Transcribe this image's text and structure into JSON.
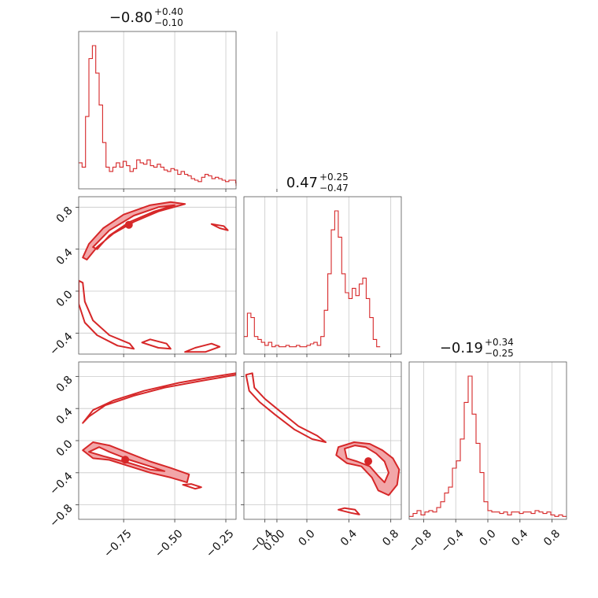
{
  "figure": {
    "color": "#d62728",
    "fill_color": "#f2a6a8"
  },
  "chart_data": {
    "type": "corner",
    "parameters": [
      {
        "title": {
          "median": "−0.80",
          "plus": "+0.40",
          "minus": "−0.10"
        },
        "range": [
          -0.97,
          -0.2
        ],
        "ticks": [
          -0.75,
          -0.5,
          -0.25,
          0.0
        ],
        "tick_labels": [
          "−0.75",
          "−0.50",
          "−0.25",
          "0.00"
        ],
        "histogram": {
          "start": -0.97,
          "bin_width": 0.0167,
          "counts": [
            0.18,
            0.15,
            0.5,
            0.9,
            0.99,
            0.8,
            0.58,
            0.32,
            0.15,
            0.12,
            0.15,
            0.18,
            0.15,
            0.19,
            0.16,
            0.12,
            0.14,
            0.2,
            0.18,
            0.17,
            0.2,
            0.16,
            0.15,
            0.17,
            0.15,
            0.13,
            0.12,
            0.14,
            0.13,
            0.1,
            0.12,
            0.1,
            0.09,
            0.07,
            0.06,
            0.05,
            0.08,
            0.1,
            0.09,
            0.07,
            0.08,
            0.07,
            0.06,
            0.05,
            0.06,
            0.06,
            0.04,
            0.03,
            0.04,
            0.04,
            0.05,
            0.04,
            0.03,
            0.04,
            0.03,
            0.04,
            0.05,
            0.03,
            0.02
          ]
        }
      },
      {
        "title": {
          "median": "0.47",
          "plus": "+0.25",
          "minus": "−0.47"
        },
        "range": [
          -0.6,
          0.9
        ],
        "ticks": [
          -0.4,
          0.0,
          0.4,
          0.8
        ],
        "tick_labels": [
          "−0.4",
          "0.0",
          "0.4",
          "0.8"
        ],
        "histogram": {
          "start": -0.6,
          "bin_width": 0.0333,
          "counts": [
            0.12,
            0.28,
            0.25,
            0.12,
            0.1,
            0.08,
            0.06,
            0.08,
            0.05,
            0.06,
            0.05,
            0.05,
            0.06,
            0.05,
            0.05,
            0.06,
            0.05,
            0.05,
            0.06,
            0.07,
            0.08,
            0.06,
            0.12,
            0.3,
            0.55,
            0.85,
            0.98,
            0.8,
            0.55,
            0.42,
            0.38,
            0.45,
            0.4,
            0.48,
            0.52,
            0.38,
            0.25,
            0.1,
            0.05
          ]
        }
      },
      {
        "title": {
          "median": "−0.19",
          "plus": "+0.34",
          "minus": "−0.25"
        },
        "range": [
          -0.98,
          0.98
        ],
        "ticks": [
          -0.8,
          -0.4,
          0.0,
          0.4,
          0.8
        ],
        "tick_labels": [
          "−0.8",
          "−0.4",
          "0.0",
          "0.4",
          "0.8"
        ],
        "histogram": {
          "start": -0.98,
          "bin_width": 0.049,
          "counts": [
            0.02,
            0.04,
            0.06,
            0.03,
            0.05,
            0.06,
            0.05,
            0.08,
            0.12,
            0.18,
            0.22,
            0.35,
            0.4,
            0.55,
            0.8,
            0.98,
            0.72,
            0.52,
            0.32,
            0.12,
            0.06,
            0.05,
            0.05,
            0.04,
            0.05,
            0.03,
            0.05,
            0.05,
            0.04,
            0.05,
            0.05,
            0.04,
            0.06,
            0.05,
            0.04,
            0.05,
            0.03,
            0.02,
            0.03,
            0.02
          ]
        }
      }
    ],
    "pairs": [
      {
        "x_param": 0,
        "y_param": 1,
        "y_ticks": [
          -0.4,
          0.0,
          0.4,
          0.8
        ],
        "y_tick_labels": [
          "−0.4",
          "0.0",
          "0.4",
          "0.8"
        ],
        "bands": [
          {
            "fill": true,
            "outer": [
              [
                -0.95,
                0.32
              ],
              [
                -0.92,
                0.45
              ],
              [
                -0.85,
                0.6
              ],
              [
                -0.75,
                0.73
              ],
              [
                -0.62,
                0.82
              ],
              [
                -0.52,
                0.85
              ],
              [
                -0.45,
                0.83
              ],
              [
                -0.58,
                0.76
              ],
              [
                -0.7,
                0.66
              ],
              [
                -0.8,
                0.55
              ],
              [
                -0.88,
                0.42
              ],
              [
                -0.93,
                0.3
              ]
            ],
            "inner": [
              [
                -0.9,
                0.42
              ],
              [
                -0.82,
                0.58
              ],
              [
                -0.7,
                0.72
              ],
              [
                -0.58,
                0.8
              ],
              [
                -0.5,
                0.82
              ],
              [
                -0.6,
                0.76
              ],
              [
                -0.72,
                0.66
              ],
              [
                -0.82,
                0.53
              ],
              [
                -0.88,
                0.4
              ]
            ]
          },
          {
            "fill": false,
            "outer": [
              [
                -0.97,
                0.1
              ],
              [
                -0.97,
                -0.12
              ],
              [
                -0.94,
                -0.3
              ],
              [
                -0.88,
                -0.42
              ],
              [
                -0.78,
                -0.52
              ],
              [
                -0.7,
                -0.55
              ],
              [
                -0.72,
                -0.5
              ],
              [
                -0.82,
                -0.42
              ],
              [
                -0.9,
                -0.28
              ],
              [
                -0.94,
                -0.1
              ],
              [
                -0.95,
                0.08
              ]
            ]
          },
          {
            "fill": false,
            "outer": [
              [
                -0.66,
                -0.49
              ],
              [
                -0.58,
                -0.54
              ],
              [
                -0.52,
                -0.55
              ],
              [
                -0.54,
                -0.5
              ],
              [
                -0.62,
                -0.46
              ]
            ]
          },
          {
            "fill": false,
            "outer": [
              [
                -0.45,
                -0.58
              ],
              [
                -0.35,
                -0.58
              ],
              [
                -0.28,
                -0.53
              ],
              [
                -0.32,
                -0.5
              ],
              [
                -0.4,
                -0.54
              ]
            ]
          },
          {
            "fill": false,
            "outer": [
              [
                -0.32,
                0.64
              ],
              [
                -0.26,
                0.62
              ],
              [
                -0.24,
                0.58
              ],
              [
                -0.28,
                0.6
              ]
            ]
          }
        ]
      },
      {
        "x_param": 0,
        "y_param": 2,
        "y_ticks": [
          -0.8,
          -0.4,
          0.0,
          0.4,
          0.8
        ],
        "y_tick_labels": [
          "−0.8",
          "−0.4",
          "0.0",
          "0.4",
          "0.8"
        ],
        "bands": [
          {
            "fill": true,
            "outer": [
              [
                -0.95,
                -0.12
              ],
              [
                -0.9,
                -0.02
              ],
              [
                -0.82,
                -0.06
              ],
              [
                -0.72,
                -0.16
              ],
              [
                -0.62,
                -0.26
              ],
              [
                -0.52,
                -0.34
              ],
              [
                -0.43,
                -0.42
              ],
              [
                -0.44,
                -0.52
              ],
              [
                -0.52,
                -0.46
              ],
              [
                -0.62,
                -0.4
              ],
              [
                -0.72,
                -0.32
              ],
              [
                -0.82,
                -0.24
              ],
              [
                -0.9,
                -0.22
              ]
            ],
            "inner": [
              [
                -0.92,
                -0.14
              ],
              [
                -0.87,
                -0.08
              ],
              [
                -0.82,
                -0.14
              ],
              [
                -0.72,
                -0.24
              ],
              [
                -0.62,
                -0.32
              ],
              [
                -0.55,
                -0.38
              ],
              [
                -0.62,
                -0.36
              ],
              [
                -0.72,
                -0.28
              ],
              [
                -0.84,
                -0.2
              ]
            ]
          },
          {
            "fill": false,
            "outer": [
              [
                -0.95,
                0.22
              ],
              [
                -0.9,
                0.38
              ],
              [
                -0.8,
                0.5
              ],
              [
                -0.65,
                0.62
              ],
              [
                -0.48,
                0.72
              ],
              [
                -0.3,
                0.8
              ],
              [
                -0.15,
                0.86
              ],
              [
                -0.05,
                0.94
              ],
              [
                0.02,
                0.96
              ],
              [
                -0.08,
                0.88
              ],
              [
                -0.2,
                0.82
              ],
              [
                -0.38,
                0.74
              ],
              [
                -0.55,
                0.66
              ],
              [
                -0.7,
                0.56
              ],
              [
                -0.84,
                0.44
              ],
              [
                -0.92,
                0.3
              ]
            ]
          },
          {
            "fill": false,
            "outer": [
              [
                -0.18,
                -0.72
              ],
              [
                -0.1,
                -0.78
              ],
              [
                0.05,
                -0.86
              ],
              [
                0.14,
                -0.9
              ],
              [
                0.15,
                -0.86
              ],
              [
                0.05,
                -0.82
              ],
              [
                -0.08,
                -0.75
              ]
            ]
          },
          {
            "fill": false,
            "outer": [
              [
                -0.46,
                -0.55
              ],
              [
                -0.4,
                -0.6
              ],
              [
                -0.37,
                -0.58
              ],
              [
                -0.42,
                -0.54
              ]
            ]
          }
        ]
      },
      {
        "x_param": 1,
        "y_param": 2,
        "y_ticks": [
          -0.8,
          -0.4,
          0.0,
          0.4,
          0.8
        ],
        "y_tick_labels": [],
        "bands": [
          {
            "fill": true,
            "outer": [
              [
                0.3,
                -0.08
              ],
              [
                0.45,
                -0.02
              ],
              [
                0.6,
                -0.04
              ],
              [
                0.72,
                -0.12
              ],
              [
                0.82,
                -0.22
              ],
              [
                0.88,
                -0.36
              ],
              [
                0.86,
                -0.55
              ],
              [
                0.78,
                -0.68
              ],
              [
                0.68,
                -0.62
              ],
              [
                0.62,
                -0.46
              ],
              [
                0.52,
                -0.32
              ],
              [
                0.38,
                -0.28
              ],
              [
                0.28,
                -0.18
              ]
            ],
            "inner": [
              [
                0.36,
                -0.1
              ],
              [
                0.46,
                -0.06
              ],
              [
                0.56,
                -0.08
              ],
              [
                0.66,
                -0.16
              ],
              [
                0.74,
                -0.26
              ],
              [
                0.78,
                -0.4
              ],
              [
                0.74,
                -0.52
              ],
              [
                0.68,
                -0.44
              ],
              [
                0.6,
                -0.32
              ],
              [
                0.48,
                -0.26
              ],
              [
                0.38,
                -0.22
              ]
            ]
          },
          {
            "fill": false,
            "outer": [
              [
                -0.58,
                0.82
              ],
              [
                -0.55,
                0.62
              ],
              [
                -0.45,
                0.48
              ],
              [
                -0.3,
                0.32
              ],
              [
                -0.12,
                0.14
              ],
              [
                0.05,
                0.02
              ],
              [
                0.18,
                -0.02
              ],
              [
                0.1,
                0.06
              ],
              [
                -0.08,
                0.18
              ],
              [
                -0.25,
                0.36
              ],
              [
                -0.4,
                0.52
              ],
              [
                -0.5,
                0.66
              ],
              [
                -0.52,
                0.84
              ]
            ]
          },
          {
            "fill": false,
            "outer": [
              [
                0.3,
                -0.86
              ],
              [
                0.42,
                -0.9
              ],
              [
                0.5,
                -0.92
              ],
              [
                0.46,
                -0.86
              ],
              [
                0.36,
                -0.84
              ]
            ]
          }
        ]
      }
    ]
  }
}
